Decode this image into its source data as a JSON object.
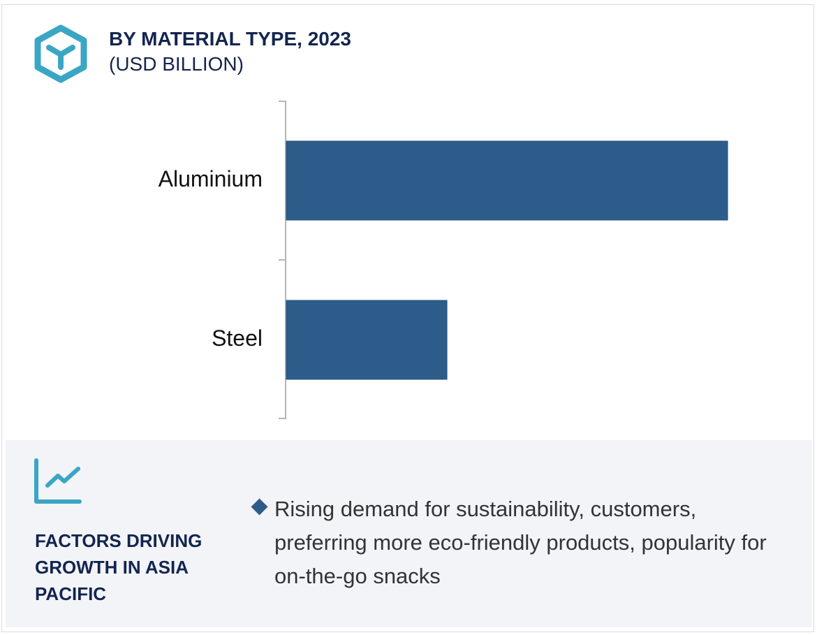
{
  "header": {
    "title": "BY MATERIAL TYPE, 2023",
    "subtitle": "(USD BILLION)",
    "icon": "cube-icon"
  },
  "chart_data": {
    "type": "bar",
    "orientation": "horizontal",
    "categories": [
      "Aluminium",
      "Steel"
    ],
    "values": [
      1.0,
      0.364
    ],
    "value_note": "relative bar lengths; no numeric axis shown",
    "title": "BY MATERIAL TYPE, 2023",
    "ylabel": "(USD BILLION)",
    "grid": false,
    "bar_color": "#2d5c8a"
  },
  "factors": {
    "icon": "line-chart-icon",
    "title": "FACTORS DRIVING GROWTH IN ASIA PACIFIC",
    "bullets": [
      "Rising demand for sustainability, customers, preferring more eco-friendly products, popularity for on-the-go snacks"
    ]
  },
  "colors": {
    "accent": "#3aa6c4",
    "navy": "#13254f",
    "bar": "#2d5c8a",
    "panel": "#f3f4f8"
  }
}
